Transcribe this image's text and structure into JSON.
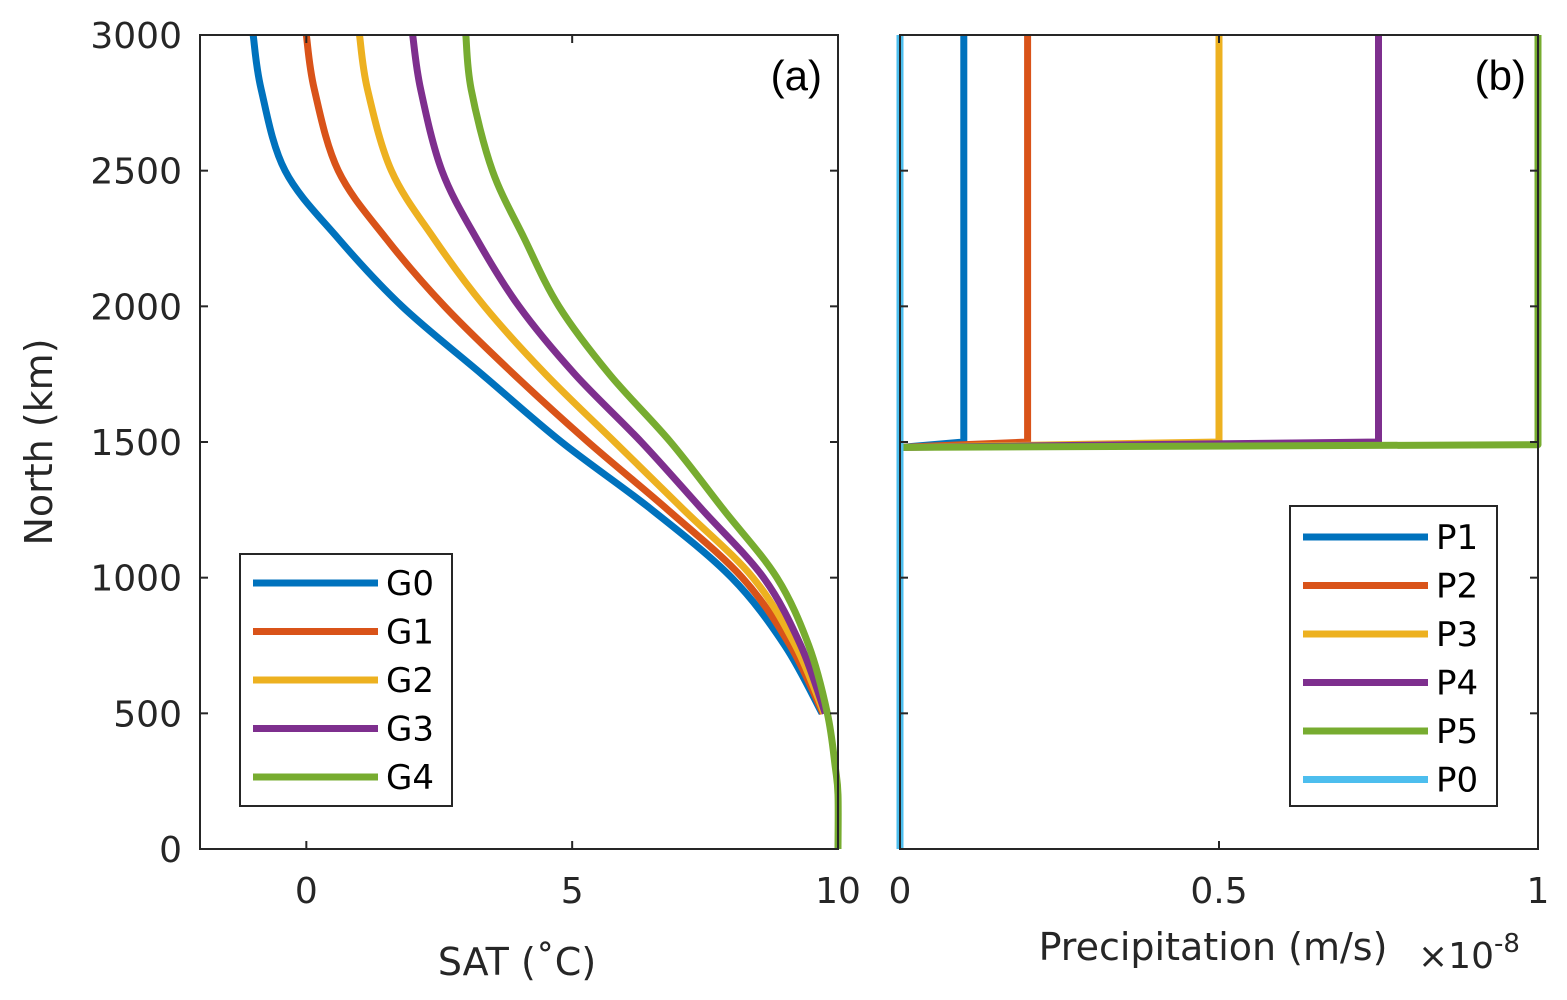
{
  "chart_data": [
    {
      "panel": "a",
      "type": "line",
      "panel_label": "(a)",
      "xlabel": "SAT (˚C)",
      "ylabel": "North (km)",
      "xlim": [
        -2,
        10
      ],
      "ylim": [
        0,
        3000
      ],
      "xticks": [
        0,
        5,
        10
      ],
      "xtick_labels": [
        "0",
        "5",
        "10"
      ],
      "yticks": [
        0,
        500,
        1000,
        1500,
        2000,
        2500,
        3000
      ],
      "ytick_labels": [
        "0",
        "500",
        "1000",
        "1500",
        "2000",
        "2500",
        "3000"
      ],
      "grid": false,
      "legend_position": "bottom-left",
      "series": [
        {
          "name": "G0",
          "color": "#0072BD",
          "x": [
            -1.0,
            -0.85,
            -0.4,
            0.6,
            1.8,
            3.3,
            4.8,
            6.5,
            8.0,
            9.0,
            9.7
          ],
          "y": [
            3000,
            2800,
            2500,
            2250,
            2000,
            1750,
            1500,
            1250,
            1000,
            750,
            500
          ]
        },
        {
          "name": "G1",
          "color": "#D95319",
          "x": [
            0.0,
            0.15,
            0.6,
            1.5,
            2.6,
            3.9,
            5.3,
            6.8,
            8.2,
            9.1,
            9.72
          ],
          "y": [
            3000,
            2800,
            2500,
            2250,
            2000,
            1750,
            1500,
            1250,
            1000,
            750,
            500
          ]
        },
        {
          "name": "G2",
          "color": "#EDB120",
          "x": [
            1.0,
            1.15,
            1.6,
            2.4,
            3.35,
            4.5,
            5.8,
            7.1,
            8.4,
            9.2,
            9.74
          ],
          "y": [
            3000,
            2800,
            2500,
            2250,
            2000,
            1750,
            1500,
            1250,
            1000,
            750,
            500
          ]
        },
        {
          "name": "G3",
          "color": "#7E2F8E",
          "x": [
            2.0,
            2.15,
            2.55,
            3.2,
            4.0,
            5.05,
            6.3,
            7.45,
            8.6,
            9.3,
            9.76
          ],
          "y": [
            3000,
            2800,
            2500,
            2250,
            2000,
            1750,
            1500,
            1250,
            1000,
            750,
            500
          ]
        },
        {
          "name": "G4",
          "color": "#77AC30",
          "x": [
            3.0,
            3.1,
            3.5,
            4.1,
            4.75,
            5.7,
            6.85,
            7.85,
            8.85,
            9.45,
            9.8,
            9.95,
            10.0,
            10.0
          ],
          "y": [
            3000,
            2800,
            2500,
            2250,
            2000,
            1750,
            1500,
            1250,
            1000,
            750,
            500,
            300,
            200,
            0
          ]
        }
      ]
    },
    {
      "panel": "b",
      "type": "line",
      "panel_label": "(b)",
      "xlabel": "Precipitation (m/s)",
      "x_exponent_label": "×10",
      "x_exponent": "-8",
      "ylabel": "",
      "xlim": [
        0,
        1
      ],
      "ylim": [
        0,
        3000
      ],
      "xticks": [
        0,
        0.5,
        1
      ],
      "xtick_labels": [
        "0",
        "0.5",
        "1"
      ],
      "yticks": [
        0,
        500,
        1000,
        1500,
        2000,
        2500,
        3000
      ],
      "grid": false,
      "legend_position": "bottom-right",
      "series": [
        {
          "name": "P1",
          "color": "#0072BD",
          "x": [
            0,
            0.1,
            0.1
          ],
          "y": [
            1480,
            1500,
            3000
          ]
        },
        {
          "name": "P2",
          "color": "#D95319",
          "x": [
            0,
            0.2,
            0.2
          ],
          "y": [
            1480,
            1500,
            3000
          ]
        },
        {
          "name": "P3",
          "color": "#EDB120",
          "x": [
            0,
            0.5,
            0.5
          ],
          "y": [
            1480,
            1500,
            3000
          ]
        },
        {
          "name": "P4",
          "color": "#7E2F8E",
          "x": [
            0,
            0.75,
            0.75
          ],
          "y": [
            1480,
            1500,
            3000
          ]
        },
        {
          "name": "P5",
          "color": "#77AC30",
          "x": [
            0,
            1.0,
            1.0
          ],
          "y": [
            1480,
            1490,
            3000
          ]
        },
        {
          "name": "P0",
          "color": "#4DBEEE",
          "x": [
            0,
            0
          ],
          "y": [
            0,
            3000
          ]
        }
      ]
    }
  ]
}
